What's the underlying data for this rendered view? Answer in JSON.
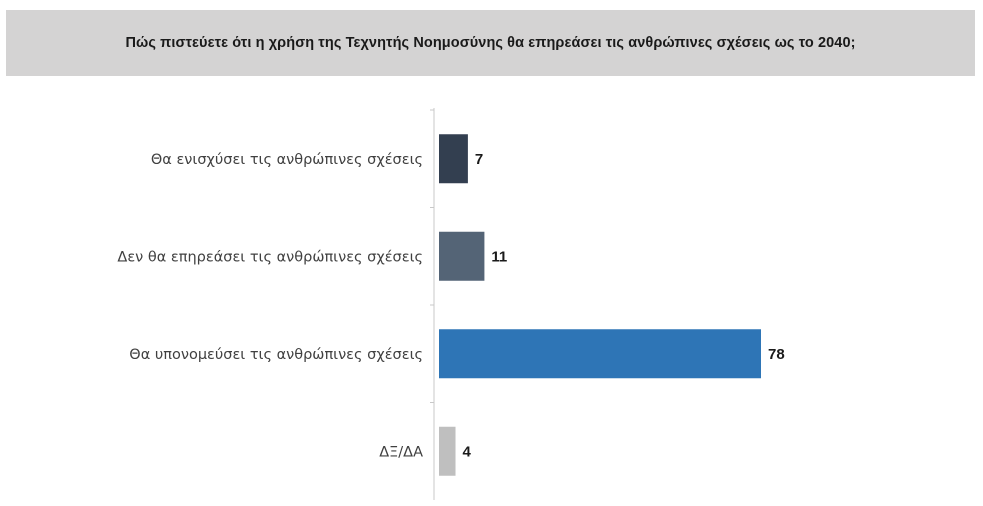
{
  "chart_data": {
    "type": "bar",
    "orientation": "horizontal",
    "title": "Πώς πιστεύετε ότι η χρήση της Τεχνητής Νοημοσύνης θα επηρεάσει τις ανθρώπινες σχέσεις ως το 2040;",
    "categories": [
      "Θα ενισχύσει τις ανθρώπινες σχέσεις",
      "Δεν θα επηρεάσει τις ανθρώπινες σχέσεις",
      "Θα υπονομεύσει τις ανθρώπινες σχέσεις",
      "ΔΞ/ΔΑ"
    ],
    "values": [
      7,
      11,
      78,
      4
    ],
    "colors": [
      "#333f50",
      "#546476",
      "#2e75b6",
      "#bfbfbf"
    ],
    "xlim": [
      0,
      100
    ],
    "grid": false,
    "legend": "none"
  }
}
